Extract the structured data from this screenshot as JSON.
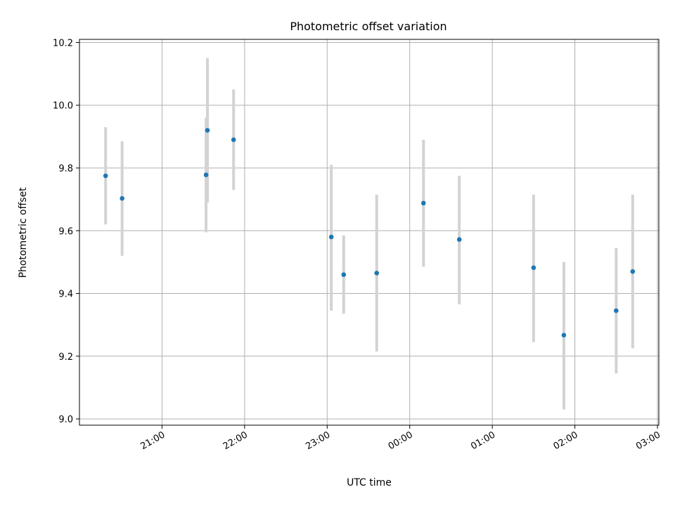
{
  "chart_data": {
    "type": "scatter",
    "title": "Photometric offset variation",
    "xlabel": "UTC time",
    "ylabel": "Photometric offset",
    "x_ticks": [
      "21:00",
      "22:00",
      "23:00",
      "00:00",
      "01:00",
      "02:00",
      "03:00"
    ],
    "y_ticks": [
      "9.0",
      "9.2",
      "9.4",
      "9.6",
      "9.8",
      "10.0",
      "10.2"
    ],
    "ylim": [
      8.98,
      10.21
    ],
    "xlim": [
      "20:00",
      "03:01"
    ],
    "grid": true,
    "series": [
      {
        "points": [
          {
            "x": "20:19",
            "y": 9.775,
            "err_low": 9.62,
            "err_high": 9.93
          },
          {
            "x": "20:31",
            "y": 9.703,
            "err_low": 9.52,
            "err_high": 9.885
          },
          {
            "x": "21:32",
            "y": 9.778,
            "err_low": 9.595,
            "err_high": 9.96
          },
          {
            "x": "21:33",
            "y": 9.92,
            "err_low": 9.69,
            "err_high": 10.15
          },
          {
            "x": "21:52",
            "y": 9.89,
            "err_low": 9.73,
            "err_high": 10.05
          },
          {
            "x": "23:03",
            "y": 9.58,
            "err_low": 9.345,
            "err_high": 9.81
          },
          {
            "x": "23:12",
            "y": 9.46,
            "err_low": 9.335,
            "err_high": 9.585
          },
          {
            "x": "23:36",
            "y": 9.465,
            "err_low": 9.215,
            "err_high": 9.715
          },
          {
            "x": "00:10",
            "y": 9.688,
            "err_low": 9.485,
            "err_high": 9.89
          },
          {
            "x": "00:36",
            "y": 9.572,
            "err_low": 9.365,
            "err_high": 9.775
          },
          {
            "x": "01:30",
            "y": 9.482,
            "err_low": 9.245,
            "err_high": 9.715
          },
          {
            "x": "01:52",
            "y": 9.267,
            "err_low": 9.03,
            "err_high": 9.5
          },
          {
            "x": "02:30",
            "y": 9.345,
            "err_low": 9.145,
            "err_high": 9.545
          },
          {
            "x": "02:42",
            "y": 9.47,
            "err_low": 9.225,
            "err_high": 9.715
          }
        ]
      }
    ],
    "colors": {
      "points": "#1f77b4",
      "error_bars": "#d3d3d3",
      "grid": "#b0b0b0"
    }
  }
}
